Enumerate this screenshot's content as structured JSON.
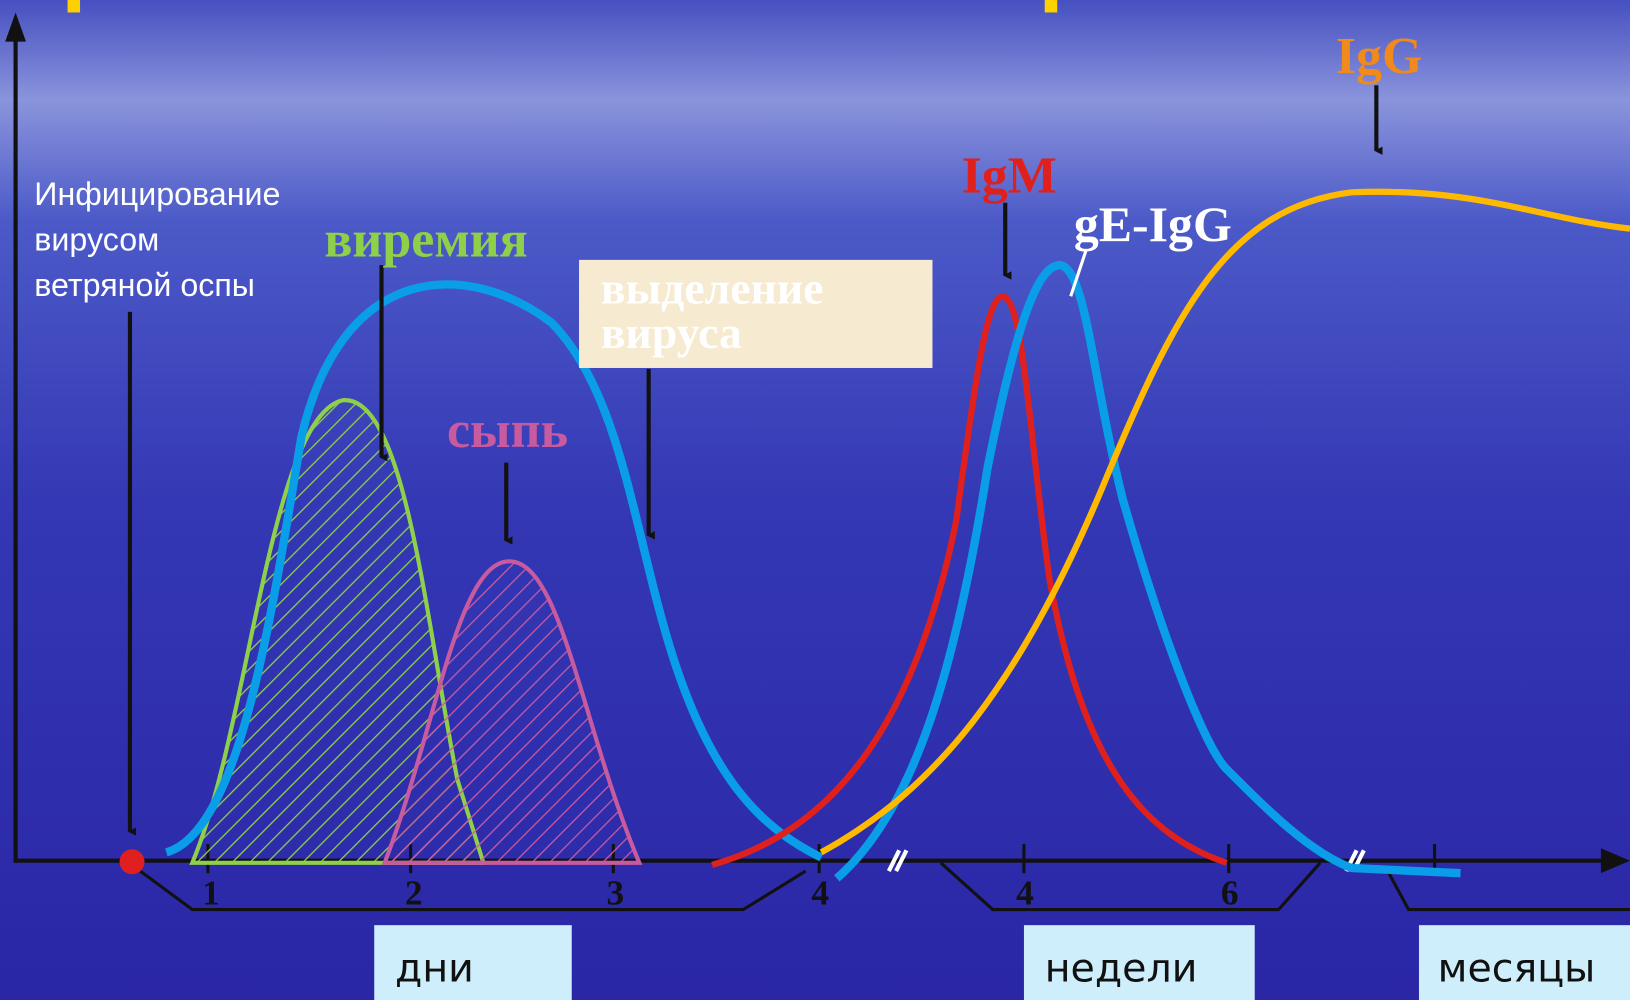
{
  "labels": {
    "infection": [
      "Инфицирование",
      "вирусом",
      "ветряной оспы"
    ],
    "viremia": "виремия",
    "shedding": [
      "выделение",
      "вируса"
    ],
    "rash": "сыпь",
    "igm": "IgM",
    "ge_igg": "gE-IgG",
    "igg": "IgG"
  },
  "axis": {
    "ticks": [
      "1",
      "2",
      "3",
      "4",
      "4",
      "6"
    ]
  },
  "periods": [
    "дни",
    "недели",
    "месяцы"
  ]
}
